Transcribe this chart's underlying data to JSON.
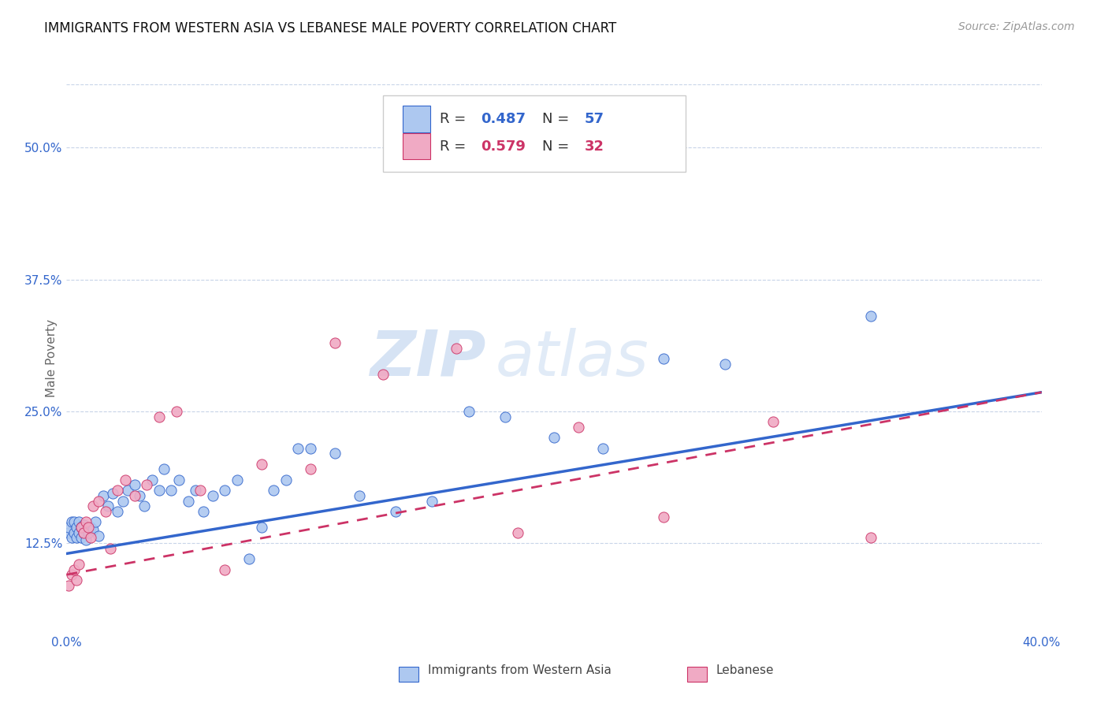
{
  "title": "IMMIGRANTS FROM WESTERN ASIA VS LEBANESE MALE POVERTY CORRELATION CHART",
  "source": "Source: ZipAtlas.com",
  "ylabel": "Male Poverty",
  "ytick_labels": [
    "12.5%",
    "25.0%",
    "37.5%",
    "50.0%"
  ],
  "ytick_values": [
    0.125,
    0.25,
    0.375,
    0.5
  ],
  "xlim": [
    0.0,
    0.4
  ],
  "ylim": [
    0.04,
    0.56
  ],
  "r_blue": 0.487,
  "n_blue": 57,
  "r_pink": 0.579,
  "n_pink": 32,
  "legend_label_blue": "Immigrants from Western Asia",
  "legend_label_pink": "Lebanese",
  "watermark": "ZIPatlas",
  "scatter_blue_x": [
    0.001,
    0.001,
    0.002,
    0.002,
    0.003,
    0.003,
    0.004,
    0.004,
    0.005,
    0.005,
    0.006,
    0.006,
    0.007,
    0.007,
    0.008,
    0.009,
    0.01,
    0.011,
    0.012,
    0.013,
    0.015,
    0.017,
    0.019,
    0.021,
    0.023,
    0.025,
    0.028,
    0.03,
    0.032,
    0.035,
    0.038,
    0.04,
    0.043,
    0.046,
    0.05,
    0.053,
    0.056,
    0.06,
    0.065,
    0.07,
    0.075,
    0.08,
    0.085,
    0.09,
    0.095,
    0.1,
    0.11,
    0.12,
    0.135,
    0.15,
    0.165,
    0.18,
    0.2,
    0.22,
    0.245,
    0.27,
    0.33
  ],
  "scatter_blue_y": [
    0.135,
    0.14,
    0.13,
    0.145,
    0.135,
    0.145,
    0.13,
    0.14,
    0.135,
    0.145,
    0.13,
    0.14,
    0.135,
    0.142,
    0.128,
    0.135,
    0.14,
    0.138,
    0.145,
    0.132,
    0.17,
    0.16,
    0.172,
    0.155,
    0.165,
    0.175,
    0.18,
    0.17,
    0.16,
    0.185,
    0.175,
    0.195,
    0.175,
    0.185,
    0.165,
    0.175,
    0.155,
    0.17,
    0.175,
    0.185,
    0.11,
    0.14,
    0.175,
    0.185,
    0.215,
    0.215,
    0.21,
    0.17,
    0.155,
    0.165,
    0.25,
    0.245,
    0.225,
    0.215,
    0.3,
    0.295,
    0.34
  ],
  "scatter_pink_x": [
    0.001,
    0.002,
    0.003,
    0.004,
    0.005,
    0.006,
    0.007,
    0.008,
    0.009,
    0.01,
    0.011,
    0.013,
    0.016,
    0.018,
    0.021,
    0.024,
    0.028,
    0.033,
    0.038,
    0.045,
    0.055,
    0.065,
    0.08,
    0.1,
    0.11,
    0.13,
    0.16,
    0.185,
    0.21,
    0.245,
    0.29,
    0.33
  ],
  "scatter_pink_y": [
    0.085,
    0.095,
    0.1,
    0.09,
    0.105,
    0.14,
    0.135,
    0.145,
    0.14,
    0.13,
    0.16,
    0.165,
    0.155,
    0.12,
    0.175,
    0.185,
    0.17,
    0.18,
    0.245,
    0.25,
    0.175,
    0.1,
    0.2,
    0.195,
    0.315,
    0.285,
    0.31,
    0.135,
    0.235,
    0.15,
    0.24,
    0.13
  ],
  "trendline_blue_x0": 0.0,
  "trendline_blue_x1": 0.4,
  "trendline_blue_y0": 0.115,
  "trendline_blue_y1": 0.268,
  "trendline_pink_x0": 0.0,
  "trendline_pink_x1": 0.4,
  "trendline_pink_y0": 0.095,
  "trendline_pink_y1": 0.268,
  "dot_size": 90,
  "blue_dot_color": "#adc8f0",
  "pink_dot_color": "#f0aac4",
  "blue_line_color": "#3366cc",
  "pink_line_color": "#cc3366",
  "background_color": "#ffffff",
  "grid_color": "#c8d4e8",
  "title_fontsize": 12,
  "source_fontsize": 10,
  "tick_fontsize": 11,
  "axis_label_fontsize": 11,
  "watermark_color": "#c8d8f0",
  "watermark_alpha": 0.45
}
